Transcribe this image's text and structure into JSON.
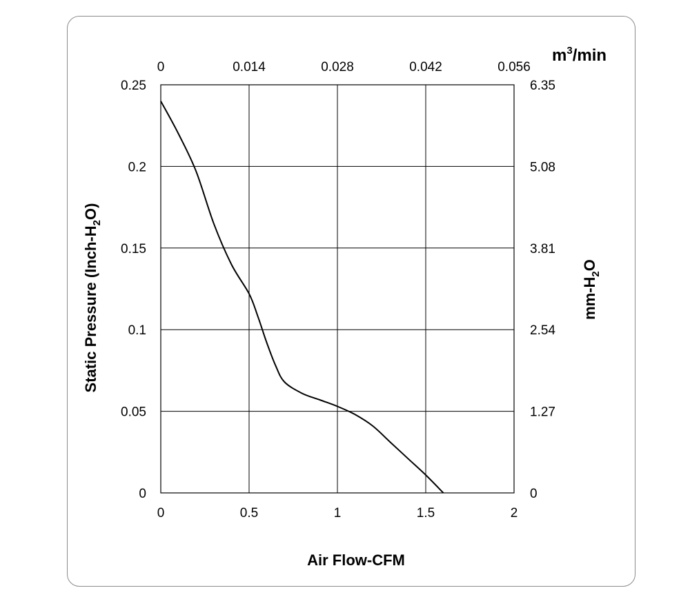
{
  "chart_data": {
    "type": "line",
    "xlabel": "Air Flow-CFM",
    "ylabel_main": "Static Pressure (Inch-H",
    "ylabel_sub": "2",
    "ylabel_end": "O)",
    "y2label_main": "mm-H",
    "y2label_sub": "2",
    "y2label_end": "O",
    "x2unit_main": "m",
    "x2unit_sup": "3",
    "x2unit_end": "/min",
    "xlim": [
      0,
      2
    ],
    "ylim": [
      0,
      0.25
    ],
    "grid": true,
    "x_ticks": [
      "0",
      "0.5",
      "1",
      "1.5",
      "2"
    ],
    "x_tick_values": [
      0,
      0.5,
      1,
      1.5,
      2
    ],
    "y_ticks": [
      "0",
      "0.05",
      "0.1",
      "0.15",
      "0.2",
      "0.25"
    ],
    "y_tick_values": [
      0,
      0.05,
      0.1,
      0.15,
      0.2,
      0.25
    ],
    "x2_ticks": [
      "0",
      "0.014",
      "0.028",
      "0.042",
      "0.056"
    ],
    "y2_ticks": [
      "0",
      "1.27",
      "2.54",
      "3.81",
      "5.08",
      "6.35"
    ],
    "series": [
      {
        "color": "#000000",
        "x": [
          0,
          0.1,
          0.2,
          0.3,
          0.4,
          0.5,
          0.55,
          0.6,
          0.65,
          0.7,
          0.8,
          0.9,
          1.0,
          1.1,
          1.2,
          1.3,
          1.4,
          1.5,
          1.6
        ],
        "y": [
          0.24,
          0.22,
          0.197,
          0.165,
          0.14,
          0.122,
          0.108,
          0.092,
          0.078,
          0.068,
          0.061,
          0.057,
          0.053,
          0.048,
          0.041,
          0.031,
          0.021,
          0.011,
          0.0
        ]
      }
    ]
  }
}
